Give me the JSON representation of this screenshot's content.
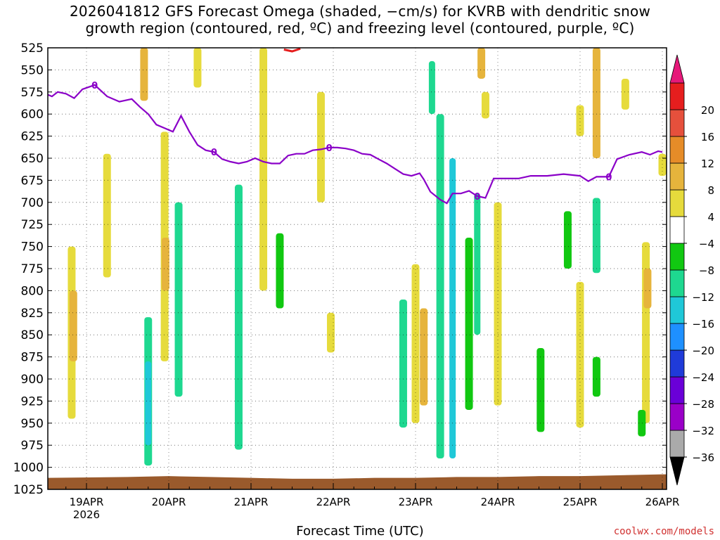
{
  "title_line1": "2026041812 GFS Forecast Omega (shaded, −cm/s) for KVRB with dendritic snow",
  "title_line2": "growth region (contoured, red, ºC) and freezing level (contoured, purple, ºC)",
  "credit": "coolwx.com/models",
  "chart_data": {
    "type": "heatmap",
    "xlabel": "Forecast Time (UTC)",
    "ylabel": "",
    "x_ticks": [
      {
        "t": 0,
        "label": "19APR",
        "sub": "2026"
      },
      {
        "t": 1,
        "label": "20APR",
        "sub": ""
      },
      {
        "t": 2,
        "label": "21APR",
        "sub": ""
      },
      {
        "t": 3,
        "label": "22APR",
        "sub": ""
      },
      {
        "t": 4,
        "label": "23APR",
        "sub": ""
      },
      {
        "t": 5,
        "label": "24APR",
        "sub": ""
      },
      {
        "t": 6,
        "label": "25APR",
        "sub": ""
      },
      {
        "t": 7,
        "label": "26APR",
        "sub": ""
      }
    ],
    "xlim_days": [
      -0.5,
      7.0
    ],
    "y_ticks": [
      525,
      550,
      575,
      600,
      625,
      650,
      675,
      700,
      725,
      750,
      775,
      800,
      825,
      850,
      875,
      900,
      925,
      950,
      975,
      1000,
      1025
    ],
    "ylim_hpa": [
      525,
      1025
    ],
    "grid": true,
    "colorbar": {
      "levels": [
        -36,
        -32,
        -28,
        -24,
        -20,
        -16,
        -12,
        -8,
        -4,
        4,
        8,
        12,
        16,
        20
      ],
      "colors": [
        "#aaaaaa",
        "#9a00c8",
        "#6a00d8",
        "#1f3bd9",
        "#1e90ff",
        "#1fc8d8",
        "#1ed890",
        "#11c811",
        "#ffffff",
        "#e6db3c",
        "#e6b43c",
        "#e68c28",
        "#e6503c",
        "#e61e1e"
      ],
      "top_arrow_color": "#e6197a",
      "bottom_arrow_color": "#000000"
    },
    "freezing_level_label": "0",
    "freezing_level": [
      [
        -0.5,
        577
      ],
      [
        -0.42,
        580
      ],
      [
        -0.35,
        575
      ],
      [
        -0.25,
        577
      ],
      [
        -0.15,
        582
      ],
      [
        -0.05,
        572
      ],
      [
        0.1,
        567
      ],
      [
        0.25,
        580
      ],
      [
        0.4,
        586
      ],
      [
        0.55,
        583
      ],
      [
        0.65,
        592
      ],
      [
        0.75,
        600
      ],
      [
        0.85,
        612
      ],
      [
        0.95,
        616
      ],
      [
        1.05,
        620
      ],
      [
        1.15,
        602
      ],
      [
        1.25,
        620
      ],
      [
        1.35,
        635
      ],
      [
        1.45,
        641
      ],
      [
        1.55,
        643
      ],
      [
        1.65,
        651
      ],
      [
        1.75,
        654
      ],
      [
        1.85,
        656
      ],
      [
        1.95,
        654
      ],
      [
        2.05,
        650
      ],
      [
        2.15,
        654
      ],
      [
        2.25,
        656
      ],
      [
        2.35,
        656
      ],
      [
        2.45,
        647
      ],
      [
        2.55,
        645
      ],
      [
        2.65,
        645
      ],
      [
        2.75,
        641
      ],
      [
        2.85,
        640
      ],
      [
        2.95,
        638
      ],
      [
        3.05,
        638
      ],
      [
        3.15,
        639
      ],
      [
        3.25,
        641
      ],
      [
        3.35,
        645
      ],
      [
        3.45,
        646
      ],
      [
        3.55,
        651
      ],
      [
        3.65,
        656
      ],
      [
        3.75,
        662
      ],
      [
        3.85,
        668
      ],
      [
        3.95,
        670
      ],
      [
        4.05,
        667
      ],
      [
        4.1,
        674
      ],
      [
        4.18,
        688
      ],
      [
        4.3,
        697
      ],
      [
        4.38,
        701
      ],
      [
        4.45,
        690
      ],
      [
        4.55,
        690
      ],
      [
        4.65,
        687
      ],
      [
        4.75,
        693
      ],
      [
        4.85,
        695
      ],
      [
        4.95,
        673
      ],
      [
        5.1,
        673
      ],
      [
        5.25,
        673
      ],
      [
        5.4,
        670
      ],
      [
        5.6,
        670
      ],
      [
        5.8,
        668
      ],
      [
        6.0,
        670
      ],
      [
        6.1,
        676
      ],
      [
        6.2,
        671
      ],
      [
        6.35,
        671
      ],
      [
        6.45,
        651
      ],
      [
        6.6,
        646
      ],
      [
        6.75,
        643
      ],
      [
        6.85,
        646
      ],
      [
        6.95,
        642
      ],
      [
        7.0,
        643
      ]
    ],
    "snow_growth_region": [
      [
        2.4,
        527
      ],
      [
        2.5,
        529
      ],
      [
        2.6,
        526
      ]
    ],
    "surface": [
      [
        -0.5,
        1012
      ],
      [
        0.5,
        1011
      ],
      [
        1.0,
        1010
      ],
      [
        1.5,
        1011
      ],
      [
        2.0,
        1012
      ],
      [
        2.5,
        1013
      ],
      [
        3.0,
        1013
      ],
      [
        3.5,
        1012
      ],
      [
        4.0,
        1012
      ],
      [
        4.5,
        1011
      ],
      [
        5.0,
        1011
      ],
      [
        5.5,
        1010
      ],
      [
        6.0,
        1010
      ],
      [
        6.5,
        1009
      ],
      [
        7.0,
        1008
      ]
    ],
    "omega_areas": [
      {
        "t": -0.18,
        "p0": 750,
        "p1": 945,
        "v": 6
      },
      {
        "t": -0.16,
        "p0": 800,
        "p1": 880,
        "v": 10
      },
      {
        "t": 0.25,
        "p0": 645,
        "p1": 785,
        "v": 6
      },
      {
        "t": 0.7,
        "p0": 525,
        "p1": 585,
        "v": 10
      },
      {
        "t": 0.75,
        "p0": 830,
        "p1": 998,
        "v": -10
      },
      {
        "t": 0.75,
        "p0": 880,
        "p1": 975,
        "v": -14
      },
      {
        "t": 0.95,
        "p0": 620,
        "p1": 880,
        "v": 6
      },
      {
        "t": 0.96,
        "p0": 740,
        "p1": 800,
        "v": 10
      },
      {
        "t": 1.12,
        "p0": 700,
        "p1": 920,
        "v": -9
      },
      {
        "t": 1.35,
        "p0": 525,
        "p1": 570,
        "v": 6
      },
      {
        "t": 1.85,
        "p0": 680,
        "p1": 980,
        "v": -10
      },
      {
        "t": 2.15,
        "p0": 525,
        "p1": 800,
        "v": 6
      },
      {
        "t": 2.35,
        "p0": 735,
        "p1": 820,
        "v": -7
      },
      {
        "t": 2.85,
        "p0": 575,
        "p1": 700,
        "v": 6
      },
      {
        "t": 2.97,
        "p0": 825,
        "p1": 870,
        "v": 6
      },
      {
        "t": 3.85,
        "p0": 810,
        "p1": 955,
        "v": -10
      },
      {
        "t": 4.0,
        "p0": 770,
        "p1": 950,
        "v": 6
      },
      {
        "t": 4.1,
        "p0": 820,
        "p1": 930,
        "v": 10
      },
      {
        "t": 4.2,
        "p0": 540,
        "p1": 600,
        "v": -12
      },
      {
        "t": 4.3,
        "p0": 600,
        "p1": 990,
        "v": -10
      },
      {
        "t": 4.45,
        "p0": 650,
        "p1": 990,
        "v": -16
      },
      {
        "t": 4.65,
        "p0": 740,
        "p1": 935,
        "v": -8
      },
      {
        "t": 4.75,
        "p0": 690,
        "p1": 850,
        "v": -12
      },
      {
        "t": 4.8,
        "p0": 525,
        "p1": 560,
        "v": 10
      },
      {
        "t": 4.85,
        "p0": 575,
        "p1": 605,
        "v": 6
      },
      {
        "t": 5.0,
        "p0": 700,
        "p1": 930,
        "v": 6
      },
      {
        "t": 5.52,
        "p0": 865,
        "p1": 960,
        "v": -8
      },
      {
        "t": 5.85,
        "p0": 710,
        "p1": 775,
        "v": -8
      },
      {
        "t": 6.0,
        "p0": 590,
        "p1": 625,
        "v": 6
      },
      {
        "t": 6.0,
        "p0": 790,
        "p1": 955,
        "v": 6
      },
      {
        "t": 6.2,
        "p0": 525,
        "p1": 650,
        "v": 10
      },
      {
        "t": 6.2,
        "p0": 695,
        "p1": 780,
        "v": -10
      },
      {
        "t": 6.2,
        "p0": 875,
        "p1": 920,
        "v": -8
      },
      {
        "t": 6.55,
        "p0": 560,
        "p1": 595,
        "v": 6
      },
      {
        "t": 6.8,
        "p0": 745,
        "p1": 950,
        "v": 6
      },
      {
        "t": 6.82,
        "p0": 775,
        "p1": 820,
        "v": 10
      },
      {
        "t": 6.75,
        "p0": 935,
        "p1": 965,
        "v": -8
      },
      {
        "t": 7.0,
        "p0": 645,
        "p1": 670,
        "v": 6
      }
    ]
  }
}
